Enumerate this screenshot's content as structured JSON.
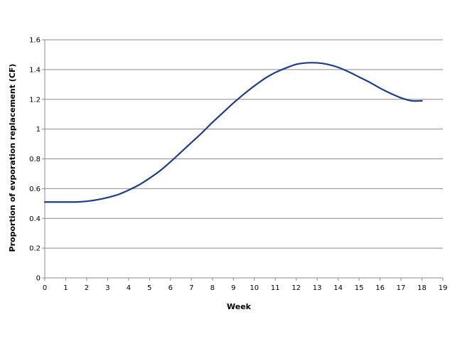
{
  "chart_data": {
    "type": "line",
    "title": "",
    "xlabel": "Week",
    "ylabel": "Proportion of evporation replacement (CF)",
    "xlim": [
      0,
      19
    ],
    "ylim": [
      0,
      1.6
    ],
    "x_ticks": [
      "0",
      "1",
      "2",
      "3",
      "4",
      "5",
      "6",
      "7",
      "8",
      "9",
      "10",
      "11",
      "12",
      "13",
      "14",
      "15",
      "16",
      "17",
      "18",
      "19"
    ],
    "y_ticks": [
      "0",
      "0.2",
      "0.4",
      "0.6",
      "0.8",
      "1",
      "1.2",
      "1.4",
      "1.6"
    ],
    "grid": "horizontal",
    "legend": "none",
    "series": [
      {
        "color": "#1f3c88",
        "x": [
          0,
          1,
          1.5,
          2,
          2.5,
          3,
          3.5,
          4,
          4.5,
          5,
          5.5,
          6,
          6.5,
          7,
          7.5,
          8,
          8.5,
          9,
          9.5,
          10,
          10.5,
          11,
          11.5,
          12,
          12.5,
          13,
          13.5,
          14,
          14.5,
          15,
          15.5,
          16,
          16.5,
          17,
          17.5,
          18
        ],
        "y": [
          0.51,
          0.51,
          0.51,
          0.515,
          0.525,
          0.54,
          0.56,
          0.59,
          0.625,
          0.67,
          0.72,
          0.78,
          0.845,
          0.91,
          0.975,
          1.045,
          1.11,
          1.175,
          1.235,
          1.29,
          1.34,
          1.38,
          1.41,
          1.435,
          1.445,
          1.445,
          1.435,
          1.415,
          1.385,
          1.35,
          1.315,
          1.275,
          1.24,
          1.21,
          1.19,
          1.19
        ]
      }
    ]
  }
}
